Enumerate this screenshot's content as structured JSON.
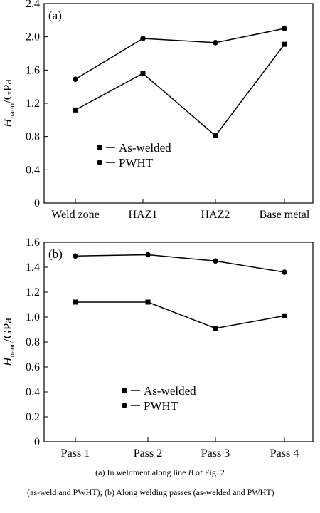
{
  "chart_data": [
    {
      "type": "line",
      "panel_label": "(a)",
      "categories": [
        "Weld zone",
        "HAZ1",
        "HAZ2",
        "Base metal"
      ],
      "series": [
        {
          "name": "As-welded",
          "marker": "square",
          "values": [
            1.12,
            1.56,
            0.81,
            1.91
          ]
        },
        {
          "name": "PWHT",
          "marker": "circle",
          "values": [
            1.49,
            1.98,
            1.93,
            2.1
          ]
        }
      ],
      "ylabel": {
        "main": "H",
        "sub": "nano",
        "unit": "/GPa"
      },
      "ylim": [
        0,
        2.4
      ],
      "yticks": [
        "0",
        "0.4",
        "0.8",
        "1.2",
        "1.6",
        "2.0",
        "2.4"
      ],
      "legend_position": "center-left",
      "grid": false
    },
    {
      "type": "line",
      "panel_label": "(b)",
      "categories": [
        "Pass 1",
        "Pass 2",
        "Pass 3",
        "Pass 4"
      ],
      "series": [
        {
          "name": "As-welded",
          "marker": "square",
          "values": [
            1.12,
            1.12,
            0.91,
            1.01
          ]
        },
        {
          "name": "PWHT",
          "marker": "circle",
          "values": [
            1.49,
            1.5,
            1.45,
            1.36
          ]
        }
      ],
      "ylabel": {
        "main": "H",
        "sub": "nano",
        "unit": "/GPa"
      },
      "ylim": [
        0,
        1.6
      ],
      "yticks": [
        "0",
        "0.2",
        "0.4",
        "0.6",
        "0.8",
        "1.0",
        "1.2",
        "1.4",
        "1.6"
      ],
      "legend_position": "center-left",
      "grid": false
    }
  ],
  "caption": {
    "line1_prefix": "(a) In weldment along line ",
    "line1_italic": "B",
    "line1_suffix": " of Fig. 2",
    "line2": "(as-weld and PWHT); (b) Along welding passes (as-welded and PWHT)"
  },
  "colors": {
    "line": "#000000",
    "background": "#ffffff"
  }
}
